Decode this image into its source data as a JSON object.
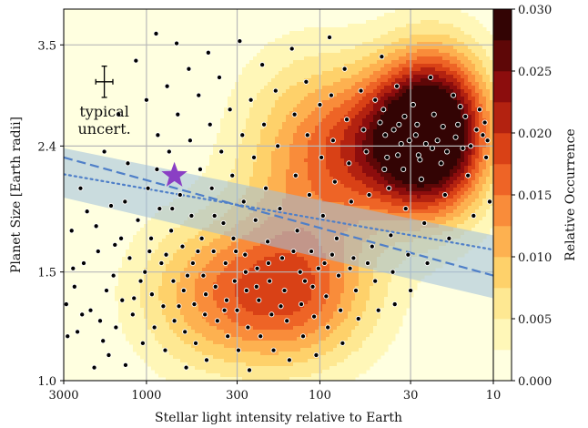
{
  "chart_data": {
    "type": "heatmap",
    "title": "",
    "xlabel": "Stellar light intensity relative to Earth",
    "ylabel": "Planet Size [Earth radii]",
    "x_scale": "log",
    "x_reversed": true,
    "x_range": [
      3000,
      10
    ],
    "x_ticks": [
      3000,
      1000,
      300,
      100,
      30,
      10
    ],
    "x_tick_labels": [
      "3000",
      "1000",
      "300",
      "100",
      "30",
      "10"
    ],
    "y_scale": "log",
    "y_range": [
      1.0,
      4.0
    ],
    "y_ticks": [
      1.0,
      1.5,
      2.4,
      3.5
    ],
    "y_tick_labels": [
      "1.0",
      "1.5",
      "2.4",
      "3.5"
    ],
    "grid": true,
    "colorbar": {
      "label": "Relative Occurrence",
      "range": [
        0.0,
        0.03
      ],
      "ticks": [
        0.0,
        0.005,
        0.01,
        0.015,
        0.02,
        0.025,
        0.03
      ],
      "tick_labels": [
        "0.000",
        "0.005",
        "0.010",
        "0.015",
        "0.020",
        "0.025",
        "0.030"
      ],
      "colors": [
        "#ffffe0",
        "#fff7b8",
        "#fee892",
        "#fed16a",
        "#fdb150",
        "#f98c3a",
        "#ee6426",
        "#d94116",
        "#b32210",
        "#8c0d0d",
        "#5e0707",
        "#330404"
      ]
    },
    "density_peaks": [
      {
        "x": 22,
        "y": 2.55,
        "amplitude": 0.03,
        "sigma_x": 0.22,
        "sigma_y": 0.09
      },
      {
        "x": 40,
        "y": 2.4,
        "amplitude": 0.016,
        "sigma_x": 0.3,
        "sigma_y": 0.08
      },
      {
        "x": 120,
        "y": 2.3,
        "amplitude": 0.01,
        "sigma_x": 0.3,
        "sigma_y": 0.12
      },
      {
        "x": 150,
        "y": 1.38,
        "amplitude": 0.016,
        "sigma_x": 0.34,
        "sigma_y": 0.085
      },
      {
        "x": 500,
        "y": 1.38,
        "amplitude": 0.008,
        "sigma_x": 0.3,
        "sigma_y": 0.09
      }
    ],
    "radius_valley": {
      "band_color": "#9ec0dc",
      "line_color": "#4f7fc8",
      "band_upper": [
        [
          3000,
          2.38
        ],
        [
          10,
          1.72
        ]
      ],
      "band_lower": [
        [
          3000,
          1.98
        ],
        [
          10,
          1.36
        ]
      ],
      "dashed_line": [
        [
          3000,
          2.3
        ],
        [
          10,
          1.48
        ]
      ],
      "dotted_line": [
        [
          3000,
          2.16
        ],
        [
          10,
          1.63
        ]
      ]
    },
    "special_point": {
      "x": 690,
      "y": 2.15,
      "marker": "star",
      "color": "#8a3fc4"
    },
    "typical_uncertainty": {
      "label_line1": "typical",
      "label_line2": "uncert.",
      "x": 1750,
      "y": 3.05,
      "x_err_factor": 1.12,
      "y_err_factor": 1.06
    },
    "scatter_points": [
      [
        2900,
        1.33
      ],
      [
        2850,
        1.18
      ],
      [
        2700,
        1.75
      ],
      [
        2650,
        1.52
      ],
      [
        2500,
        1.2
      ],
      [
        2400,
        2.05
      ],
      [
        2300,
        1.55
      ],
      [
        2200,
        1.88
      ],
      [
        2100,
        1.3
      ],
      [
        2000,
        1.05
      ],
      [
        1900,
        1.62
      ],
      [
        1850,
        1.25
      ],
      [
        1750,
        2.35
      ],
      [
        1700,
        1.4
      ],
      [
        1650,
        1.1
      ],
      [
        1600,
        1.92
      ],
      [
        1550,
        1.48
      ],
      [
        1500,
        1.22
      ],
      [
        1450,
        2.7
      ],
      [
        1400,
        1.7
      ],
      [
        1380,
        1.35
      ],
      [
        1320,
        1.06
      ],
      [
        1280,
        2.25
      ],
      [
        1250,
        1.58
      ],
      [
        1200,
        1.28
      ],
      [
        1150,
        3.3
      ],
      [
        1120,
        1.82
      ],
      [
        1080,
        1.45
      ],
      [
        1050,
        1.15
      ],
      [
        1000,
        2.85
      ],
      [
        980,
        2.05
      ],
      [
        960,
        1.62
      ],
      [
        930,
        1.38
      ],
      [
        900,
        1.22
      ],
      [
        880,
        3.65
      ],
      [
        860,
        2.5
      ],
      [
        840,
        1.9
      ],
      [
        820,
        1.55
      ],
      [
        800,
        1.32
      ],
      [
        780,
        1.12
      ],
      [
        760,
        3.0
      ],
      [
        740,
        2.35
      ],
      [
        720,
        1.75
      ],
      [
        700,
        1.45
      ],
      [
        690,
        1.25
      ],
      [
        670,
        3.52
      ],
      [
        660,
        2.7
      ],
      [
        640,
        2.0
      ],
      [
        620,
        1.65
      ],
      [
        610,
        1.4
      ],
      [
        600,
        1.2
      ],
      [
        590,
        1.05
      ],
      [
        570,
        3.2
      ],
      [
        560,
        2.45
      ],
      [
        550,
        1.85
      ],
      [
        540,
        1.55
      ],
      [
        530,
        1.33
      ],
      [
        520,
        1.15
      ],
      [
        500,
        2.9
      ],
      [
        490,
        2.2
      ],
      [
        480,
        1.7
      ],
      [
        470,
        1.48
      ],
      [
        460,
        1.28
      ],
      [
        450,
        1.08
      ],
      [
        440,
        3.4
      ],
      [
        430,
        2.6
      ],
      [
        420,
        2.05
      ],
      [
        410,
        1.62
      ],
      [
        400,
        1.42
      ],
      [
        390,
        1.25
      ],
      [
        380,
        3.1
      ],
      [
        370,
        2.35
      ],
      [
        360,
        1.8
      ],
      [
        350,
        1.55
      ],
      [
        345,
        1.35
      ],
      [
        340,
        1.18
      ],
      [
        330,
        2.75
      ],
      [
        320,
        2.15
      ],
      [
        315,
        1.7
      ],
      [
        310,
        1.45
      ],
      [
        300,
        1.3
      ],
      [
        295,
        1.12
      ],
      [
        290,
        3.55
      ],
      [
        280,
        2.5
      ],
      [
        275,
        1.95
      ],
      [
        270,
        1.6
      ],
      [
        265,
        1.4
      ],
      [
        260,
        1.22
      ],
      [
        255,
        1.04
      ],
      [
        250,
        2.85
      ],
      [
        240,
        2.3
      ],
      [
        235,
        1.82
      ],
      [
        230,
        1.52
      ],
      [
        225,
        1.35
      ],
      [
        220,
        1.18
      ],
      [
        215,
        3.25
      ],
      [
        210,
        2.6
      ],
      [
        205,
        2.05
      ],
      [
        200,
        1.68
      ],
      [
        195,
        1.45
      ],
      [
        190,
        1.28
      ],
      [
        185,
        1.12
      ],
      [
        180,
        2.95
      ],
      [
        175,
        2.4
      ],
      [
        170,
        1.9
      ],
      [
        165,
        1.58
      ],
      [
        160,
        1.4
      ],
      [
        155,
        1.25
      ],
      [
        150,
        1.08
      ],
      [
        145,
        3.45
      ],
      [
        140,
        2.7
      ],
      [
        138,
        2.15
      ],
      [
        135,
        1.75
      ],
      [
        130,
        1.5
      ],
      [
        128,
        1.33
      ],
      [
        125,
        1.18
      ],
      [
        120,
        3.05
      ],
      [
        118,
        2.5
      ],
      [
        115,
        2.0
      ],
      [
        112,
        1.62
      ],
      [
        110,
        1.42
      ],
      [
        108,
        1.27
      ],
      [
        105,
        1.1
      ],
      [
        100,
        2.8
      ],
      [
        98,
        2.3
      ],
      [
        96,
        1.85
      ],
      [
        94,
        1.55
      ],
      [
        92,
        1.37
      ],
      [
        90,
        1.22
      ],
      [
        88,
        3.6
      ],
      [
        86,
        2.9
      ],
      [
        84,
        2.45
      ],
      [
        82,
        2.1
      ],
      [
        80,
        1.7
      ],
      [
        78,
        1.48
      ],
      [
        76,
        1.3
      ],
      [
        74,
        1.15
      ],
      [
        72,
        3.2
      ],
      [
        70,
        2.65
      ],
      [
        68,
        2.25
      ],
      [
        66,
        1.95
      ],
      [
        64,
        1.58
      ],
      [
        62,
        1.4
      ],
      [
        60,
        1.26
      ],
      [
        58,
        2.95
      ],
      [
        56,
        2.55
      ],
      [
        54,
        2.35
      ],
      [
        52,
        2.0
      ],
      [
        50,
        1.65
      ],
      [
        48,
        1.45
      ],
      [
        46,
        1.3
      ],
      [
        44,
        3.35
      ],
      [
        43,
        2.75
      ],
      [
        42,
        2.5
      ],
      [
        41,
        2.3
      ],
      [
        40,
        2.05
      ],
      [
        39,
        1.72
      ],
      [
        38,
        1.5
      ],
      [
        37,
        1.33
      ],
      [
        36,
        3.0
      ],
      [
        35,
        2.6
      ],
      [
        34,
        2.42
      ],
      [
        33,
        2.2
      ],
      [
        32,
        1.9
      ],
      [
        31,
        1.6
      ],
      [
        30,
        1.4
      ],
      [
        29,
        2.8
      ],
      [
        28,
        2.5
      ],
      [
        27,
        2.32
      ],
      [
        26,
        2.12
      ],
      [
        25,
        1.8
      ],
      [
        24,
        1.55
      ],
      [
        23,
        3.1
      ],
      [
        22,
        2.7
      ],
      [
        21,
        2.45
      ],
      [
        20,
        2.25
      ],
      [
        19,
        2.0
      ],
      [
        18,
        1.7
      ],
      [
        17,
        2.9
      ],
      [
        16,
        2.6
      ],
      [
        15,
        2.38
      ],
      [
        14,
        2.15
      ],
      [
        13,
        1.85
      ],
      [
        12,
        2.75
      ],
      [
        11.5,
        2.5
      ],
      [
        11,
        2.3
      ],
      [
        10.5,
        1.95
      ],
      [
        2600,
        1.42
      ],
      [
        2350,
        1.28
      ],
      [
        1950,
        1.78
      ],
      [
        1780,
        1.16
      ],
      [
        1520,
        1.66
      ],
      [
        1330,
        1.95
      ],
      [
        1180,
        1.36
      ],
      [
        1020,
        1.5
      ],
      [
        940,
        1.7
      ],
      [
        870,
        2.2
      ],
      [
        770,
        1.6
      ],
      [
        710,
        1.9
      ],
      [
        650,
        1.32
      ],
      [
        580,
        1.48
      ],
      [
        505,
        1.62
      ],
      [
        455,
        1.38
      ],
      [
        405,
        1.85
      ],
      [
        355,
        1.3
      ],
      [
        305,
        1.62
      ],
      [
        268,
        1.5
      ],
      [
        232,
        1.42
      ],
      [
        198,
        1.55
      ],
      [
        168,
        1.32
      ],
      [
        142,
        1.62
      ],
      [
        122,
        1.45
      ],
      [
        102,
        1.52
      ],
      [
        85,
        1.6
      ],
      [
        67,
        1.52
      ],
      [
        53,
        1.55
      ],
      [
        45,
        2.62
      ],
      [
        37.5,
        2.55
      ],
      [
        32.5,
        2.68
      ],
      [
        27.5,
        2.6
      ],
      [
        24.5,
        2.42
      ],
      [
        19.5,
        2.58
      ],
      [
        16.5,
        2.48
      ],
      [
        14.5,
        2.68
      ],
      [
        12.5,
        2.55
      ],
      [
        11.2,
        2.62
      ],
      [
        48,
        2.85
      ],
      [
        42.5,
        2.2
      ],
      [
        35.5,
        2.32
      ],
      [
        30.5,
        2.45
      ],
      [
        26.5,
        2.28
      ],
      [
        22.5,
        2.38
      ],
      [
        18.5,
        2.35
      ],
      [
        15.5,
        2.78
      ],
      [
        13.5,
        2.4
      ],
      [
        10.8,
        2.45
      ]
    ]
  }
}
